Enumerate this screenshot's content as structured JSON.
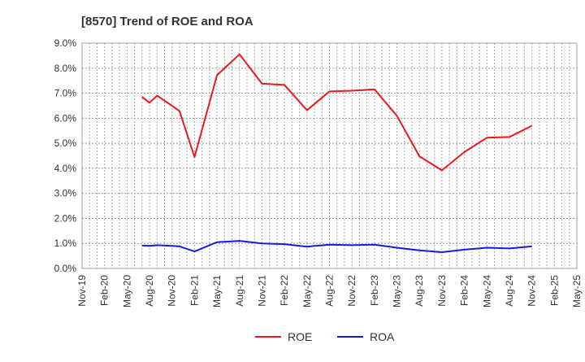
{
  "chart_data": {
    "type": "line",
    "title": "[8570]  Trend of ROE and ROA",
    "xlabel": "",
    "ylabel": "",
    "ylim": [
      0,
      9
    ],
    "y_ticks": [
      "0.0%",
      "1.0%",
      "2.0%",
      "3.0%",
      "4.0%",
      "5.0%",
      "6.0%",
      "7.0%",
      "8.0%",
      "9.0%"
    ],
    "x_ticks": [
      "Nov-19",
      "Feb-20",
      "May-20",
      "Aug-20",
      "Nov-20",
      "Feb-21",
      "May-21",
      "Aug-21",
      "Nov-21",
      "Feb-22",
      "May-22",
      "Aug-22",
      "Nov-22",
      "Feb-23",
      "May-23",
      "Aug-23",
      "Nov-23",
      "Feb-24",
      "May-24",
      "Aug-24",
      "Nov-24",
      "Feb-25",
      "May-25"
    ],
    "grid": true,
    "legend_position": "bottom",
    "series": [
      {
        "name": "ROE",
        "color": "#e8191b",
        "points": [
          {
            "x": "Jul-20",
            "y": 6.85
          },
          {
            "x": "Aug-20",
            "y": 6.62
          },
          {
            "x": "Sep-20",
            "y": 6.9
          },
          {
            "x": "Nov-20",
            "y": 6.5
          },
          {
            "x": "Dec-20",
            "y": 6.28
          },
          {
            "x": "Feb-21",
            "y": 4.45
          },
          {
            "x": "May-21",
            "y": 7.72
          },
          {
            "x": "Aug-21",
            "y": 8.55
          },
          {
            "x": "Nov-21",
            "y": 7.38
          },
          {
            "x": "Feb-22",
            "y": 7.33
          },
          {
            "x": "May-22",
            "y": 6.32
          },
          {
            "x": "Aug-22",
            "y": 7.07
          },
          {
            "x": "Nov-22",
            "y": 7.1
          },
          {
            "x": "Feb-23",
            "y": 7.15
          },
          {
            "x": "May-23",
            "y": 6.1
          },
          {
            "x": "Aug-23",
            "y": 4.48
          },
          {
            "x": "Nov-23",
            "y": 3.92
          },
          {
            "x": "Feb-24",
            "y": 4.65
          },
          {
            "x": "May-24",
            "y": 5.22
          },
          {
            "x": "Aug-24",
            "y": 5.25
          },
          {
            "x": "Nov-24",
            "y": 5.7
          }
        ]
      },
      {
        "name": "ROA",
        "color": "#1a1adc",
        "points": [
          {
            "x": "Jul-20",
            "y": 0.92
          },
          {
            "x": "Aug-20",
            "y": 0.9
          },
          {
            "x": "Sep-20",
            "y": 0.93
          },
          {
            "x": "Nov-20",
            "y": 0.9
          },
          {
            "x": "Dec-20",
            "y": 0.88
          },
          {
            "x": "Feb-21",
            "y": 0.68
          },
          {
            "x": "May-21",
            "y": 1.05
          },
          {
            "x": "Aug-21",
            "y": 1.1
          },
          {
            "x": "Nov-21",
            "y": 1.0
          },
          {
            "x": "Feb-22",
            "y": 0.97
          },
          {
            "x": "May-22",
            "y": 0.87
          },
          {
            "x": "Aug-22",
            "y": 0.95
          },
          {
            "x": "Nov-22",
            "y": 0.93
          },
          {
            "x": "Feb-23",
            "y": 0.95
          },
          {
            "x": "May-23",
            "y": 0.83
          },
          {
            "x": "Aug-23",
            "y": 0.72
          },
          {
            "x": "Nov-23",
            "y": 0.65
          },
          {
            "x": "Feb-24",
            "y": 0.75
          },
          {
            "x": "May-24",
            "y": 0.83
          },
          {
            "x": "Aug-24",
            "y": 0.8
          },
          {
            "x": "Nov-24",
            "y": 0.88
          }
        ]
      }
    ]
  }
}
